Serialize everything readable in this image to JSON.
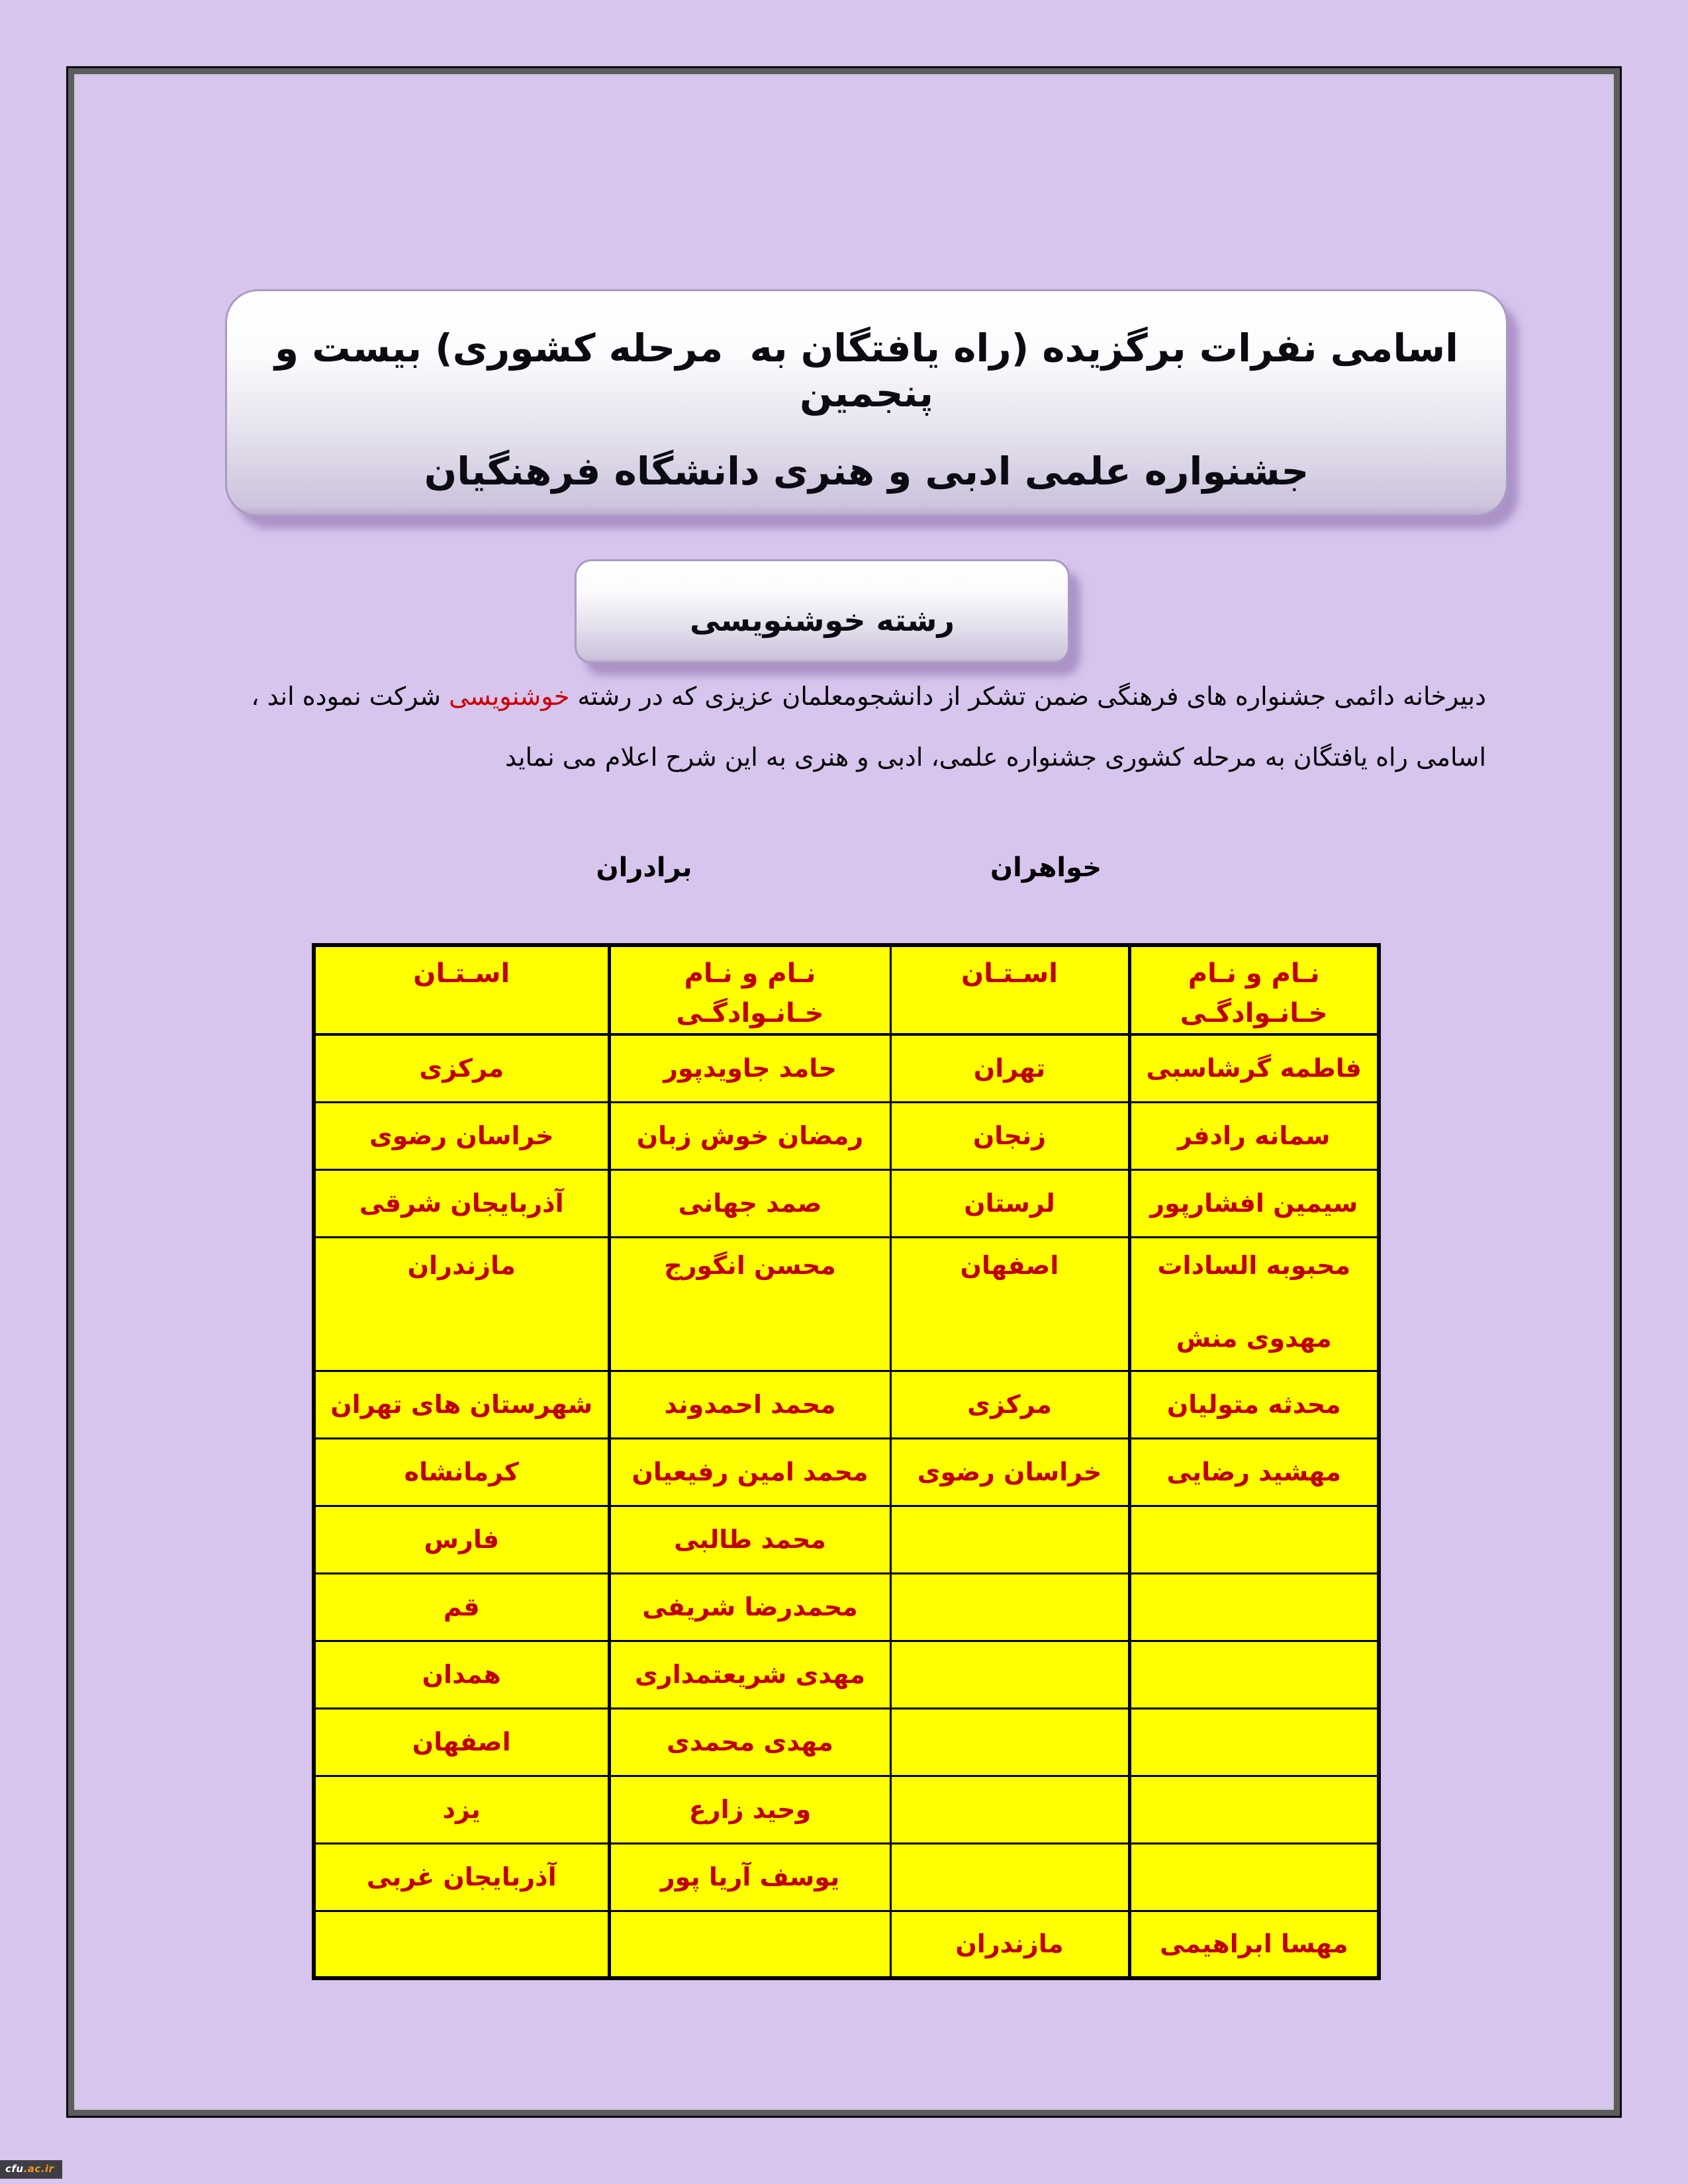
{
  "title_banner": {
    "line1": "اسامی نفرات برگزیده (راه یافتگان به  مرحله کشوری) بیست و پنجمین",
    "line2": "جشنواره علمی ادبی و هنری دانشگاه فرهنگیان"
  },
  "field_banner": {
    "label": "رشته خوشنویسی"
  },
  "intro": {
    "line1_pre": "دبیرخانه دائمی جشنواره های فرهنگی ضمن تشکر از دانشجومعلمان عزیزی که در رشته ",
    "line1_highlight": "خوشنویسی",
    "line1_post": "  شرکت نموده اند ،",
    "line2": "اسامی راه یافتگان به مرحله کشوری جشنواره علمی، ادبی و هنری به این شرح اعلام می نماید",
    "highlight_color": "#cc0000"
  },
  "group_labels": {
    "brothers": "برادران",
    "sisters": "خواهران"
  },
  "table": {
    "headers": {
      "province": "اسـتـان",
      "name": "نـام و نـام\nخـانـوادگـی"
    },
    "colors": {
      "cell_bg": "#ffff00",
      "text": "#c00000",
      "border": "#000000"
    },
    "rows": [
      {
        "b_province": "مرکزی",
        "b_name": "حامد جاویدپور",
        "s_province": "تهران",
        "s_name": "فاطمه گرشاسبی",
        "tall": false
      },
      {
        "b_province": "خراسان رضوی",
        "b_name": "رمضان خوش زبان",
        "s_province": "زنجان",
        "s_name": "سمانه رادفر",
        "tall": false
      },
      {
        "b_province": "آذربایجان شرقی",
        "b_name": "صمد جهانی",
        "s_province": "لرستان",
        "s_name": "سیمین افشارپور",
        "tall": false
      },
      {
        "b_province": "مازندران",
        "b_name": "محسن انگورج",
        "s_province": "اصفهان",
        "s_name": "محبوبه السادات\n\nمهدوی منش",
        "tall": true
      },
      {
        "b_province": "شهرستان های تهران",
        "b_name": "محمد احمدوند",
        "s_province": "مرکزی",
        "s_name": "محدثه متولیان",
        "tall": false
      },
      {
        "b_province": "کرمانشاه",
        "b_name": "محمد امین رفیعیان",
        "s_province": "خراسان رضوی",
        "s_name": "مهشید رضایی",
        "tall": false
      },
      {
        "b_province": "فارس",
        "b_name": "محمد طالبی",
        "s_province": "",
        "s_name": "",
        "tall": false
      },
      {
        "b_province": "قم",
        "b_name": "محمدرضا شریفی",
        "s_province": "",
        "s_name": "",
        "tall": false
      },
      {
        "b_province": "همدان",
        "b_name": "مهدی شریعتمداری",
        "s_province": "",
        "s_name": "",
        "tall": false
      },
      {
        "b_province": "اصفهان",
        "b_name": "مهدی محمدی",
        "s_province": "",
        "s_name": "",
        "tall": false
      },
      {
        "b_province": "یزد",
        "b_name": "وحید زارع",
        "s_province": "",
        "s_name": "",
        "tall": false
      },
      {
        "b_province": "آذربایجان غربی",
        "b_name": "یوسف آریا پور",
        "s_province": "",
        "s_name": "",
        "tall": false
      },
      {
        "b_province": "",
        "b_name": "",
        "s_province": "مازندران",
        "s_name": "مهسا ابراهیمی",
        "tall": false
      }
    ]
  },
  "watermark": {
    "site": "cfu",
    "domain": ".ac.ir"
  }
}
